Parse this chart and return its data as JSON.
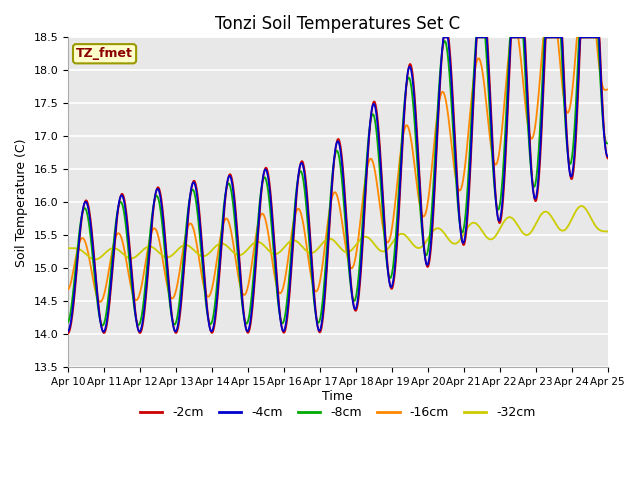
{
  "title": "Tonzi Soil Temperatures Set C",
  "xlabel": "Time",
  "ylabel": "Soil Temperature (C)",
  "ylim": [
    13.5,
    18.5
  ],
  "bg_color": "#e8e8e8",
  "grid_color": "white",
  "legend_label": "TZ_fmet",
  "series": [
    {
      "label": "-2cm",
      "color": "#cc0000"
    },
    {
      "label": "-4cm",
      "color": "#0000cc"
    },
    {
      "label": "-8cm",
      "color": "#00aa00"
    },
    {
      "label": "-16cm",
      "color": "#ff8800"
    },
    {
      "label": "-32cm",
      "color": "#cccc00"
    }
  ],
  "xtick_labels": [
    "Apr 10",
    "Apr 11",
    "Apr 12",
    "Apr 13",
    "Apr 14",
    "Apr 15",
    "Apr 16",
    "Apr 17",
    "Apr 18",
    "Apr 19",
    "Apr 20",
    "Apr 21",
    "Apr 22",
    "Apr 23",
    "Apr 24",
    "Apr 25"
  ]
}
